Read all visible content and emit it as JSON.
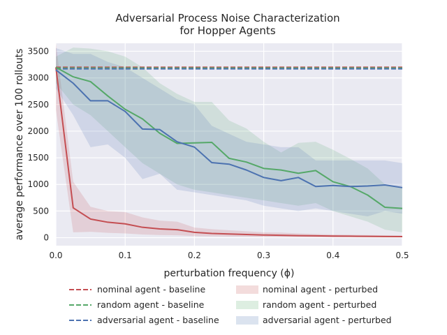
{
  "chart_data": {
    "type": "line",
    "title": "Adversarial Process Noise Characterization",
    "subtitle": "for Hopper Agents",
    "xlabel": "perturbation frequency (ϕ)",
    "ylabel": "average performance over 100 rollouts",
    "xlim": [
      0,
      0.5
    ],
    "ylim": [
      -150,
      3650
    ],
    "xticks": [
      0.0,
      0.1,
      0.2,
      0.3,
      0.4,
      0.5
    ],
    "xtick_labels": [
      "0.0",
      "0.1",
      "0.2",
      "0.3",
      "0.4",
      "0.5"
    ],
    "yticks": [
      0,
      500,
      1000,
      1500,
      2000,
      2500,
      3000,
      3500
    ],
    "ytick_labels": [
      "0",
      "500",
      "1000",
      "1500",
      "2000",
      "2500",
      "3000",
      "3500"
    ],
    "grid": true,
    "legend_placement": "below",
    "x": [
      0.0,
      0.025,
      0.05,
      0.075,
      0.1,
      0.125,
      0.15,
      0.175,
      0.2,
      0.225,
      0.25,
      0.275,
      0.3,
      0.325,
      0.35,
      0.375,
      0.4,
      0.425,
      0.45,
      0.475,
      0.5
    ],
    "baselines": [
      {
        "name": "nominal agent - baseline",
        "value": 3200,
        "color": "#c44e52"
      },
      {
        "name": "random agent - baseline",
        "value": 3185,
        "color": "#55a868"
      },
      {
        "name": "adversarial agent - baseline",
        "value": 3170,
        "color": "#4c72b0"
      }
    ],
    "series": [
      {
        "name": "nominal agent - perturbed",
        "color": "#c44e52",
        "values": [
          3200,
          560,
          350,
          290,
          260,
          195,
          165,
          150,
          100,
          80,
          70,
          60,
          50,
          45,
          38,
          35,
          30,
          28,
          25,
          22,
          20
        ],
        "lower": [
          2400,
          100,
          110,
          90,
          80,
          60,
          50,
          45,
          30,
          25,
          20,
          18,
          15,
          12,
          10,
          9,
          8,
          8,
          6,
          5,
          5
        ],
        "upper": [
          3650,
          1050,
          580,
          500,
          480,
          380,
          320,
          300,
          190,
          160,
          140,
          120,
          100,
          95,
          80,
          70,
          60,
          55,
          50,
          45,
          40
        ]
      },
      {
        "name": "random agent - perturbed",
        "color": "#55a868",
        "values": [
          3200,
          3020,
          2930,
          2660,
          2410,
          2230,
          1960,
          1770,
          1780,
          1790,
          1490,
          1420,
          1300,
          1270,
          1210,
          1260,
          1050,
          960,
          800,
          570,
          550
        ],
        "lower": [
          2900,
          2500,
          2300,
          2000,
          1700,
          1400,
          1200,
          1000,
          900,
          850,
          800,
          750,
          700,
          650,
          600,
          650,
          500,
          400,
          300,
          150,
          100
        ],
        "upper": [
          3400,
          3570,
          3550,
          3500,
          3400,
          3200,
          2900,
          2700,
          2550,
          2550,
          2200,
          2050,
          1800,
          1600,
          1780,
          1800,
          1650,
          1480,
          1300,
          1000,
          950
        ]
      },
      {
        "name": "adversarial agent - perturbed",
        "color": "#4c72b0",
        "values": [
          3150,
          2900,
          2570,
          2570,
          2370,
          2040,
          2030,
          1800,
          1700,
          1410,
          1380,
          1270,
          1130,
          1070,
          1130,
          960,
          980,
          960,
          970,
          990,
          940
        ],
        "lower": [
          2800,
          2300,
          1700,
          1750,
          1500,
          1100,
          1200,
          900,
          850,
          800,
          750,
          700,
          600,
          550,
          500,
          550,
          500,
          450,
          400,
          500,
          450
        ],
        "upper": [
          3560,
          3450,
          3450,
          3300,
          3200,
          3000,
          2800,
          2600,
          2500,
          2100,
          1950,
          1800,
          1750,
          1700,
          1700,
          1450,
          1450,
          1450,
          1450,
          1450,
          1400
        ]
      }
    ]
  }
}
